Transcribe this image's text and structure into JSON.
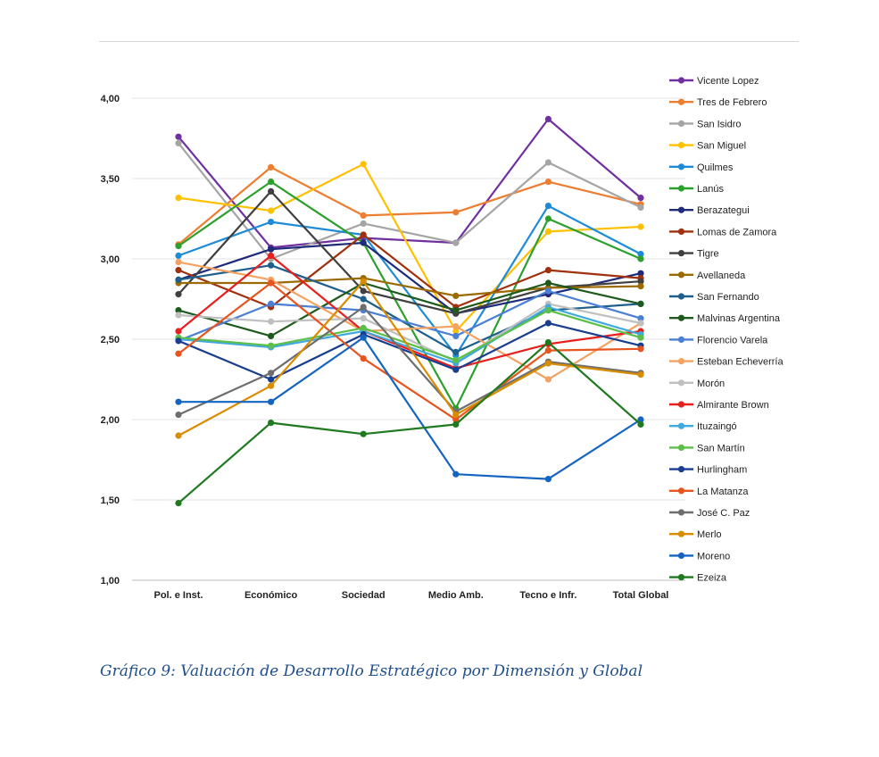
{
  "caption": "Gráfico 9: Valuación de Desarrollo Estratégico por Dimensión y Global",
  "chart_data": {
    "type": "line",
    "title": "",
    "xlabel": "",
    "ylabel": "",
    "ylim": [
      1.0,
      4.0
    ],
    "yticks": [
      "1,00",
      "1,50",
      "2,00",
      "2,50",
      "3,00",
      "3,50",
      "4,00"
    ],
    "ytick_values": [
      1.0,
      1.5,
      2.0,
      2.5,
      3.0,
      3.5,
      4.0
    ],
    "categories": [
      "Pol. e Inst.",
      "Económico",
      "Sociedad",
      "Medio Amb.",
      "Tecno e Infr.",
      "Total Global"
    ],
    "grid": true,
    "legend_position": "right",
    "series": [
      {
        "name": "Vicente Lopez",
        "color": "#7030a0",
        "values": [
          3.76,
          3.07,
          3.13,
          3.1,
          3.87,
          3.38
        ]
      },
      {
        "name": "Tres de Febrero",
        "color": "#ed7d31",
        "values": [
          3.09,
          3.57,
          3.27,
          3.29,
          3.48,
          3.34
        ]
      },
      {
        "name": "San Isidro",
        "color": "#a5a5a5",
        "values": [
          3.72,
          3.0,
          3.22,
          3.1,
          3.6,
          3.32
        ]
      },
      {
        "name": "San Miguel",
        "color": "#ffc000",
        "values": [
          3.38,
          3.3,
          3.59,
          2.55,
          3.17,
          3.2
        ]
      },
      {
        "name": "Quilmes",
        "color": "#1e8bd8",
        "values": [
          3.02,
          3.23,
          3.15,
          2.4,
          3.33,
          3.03
        ]
      },
      {
        "name": "Lanús",
        "color": "#2ca02c",
        "values": [
          3.08,
          3.48,
          3.1,
          2.07,
          3.25,
          3.0
        ]
      },
      {
        "name": "Berazategui",
        "color": "#1f2a7a",
        "values": [
          2.87,
          3.06,
          3.1,
          2.66,
          2.78,
          2.91
        ]
      },
      {
        "name": "Lomas de Zamora",
        "color": "#a0300e",
        "values": [
          2.93,
          2.7,
          3.15,
          2.7,
          2.93,
          2.88
        ]
      },
      {
        "name": "Tigre",
        "color": "#404040",
        "values": [
          2.78,
          3.42,
          2.8,
          2.66,
          2.82,
          2.86
        ]
      },
      {
        "name": "Avellaneda",
        "color": "#9b6a00",
        "values": [
          2.85,
          2.85,
          2.88,
          2.77,
          2.82,
          2.83
        ]
      },
      {
        "name": "San Fernando",
        "color": "#1f5f8b",
        "values": [
          2.87,
          2.96,
          2.75,
          2.42,
          2.68,
          2.72
        ]
      },
      {
        "name": "Malvinas Argentina",
        "color": "#1e5a1e",
        "values": [
          2.68,
          2.52,
          2.85,
          2.68,
          2.85,
          2.72
        ]
      },
      {
        "name": "Florencio Varela",
        "color": "#4a7fd4",
        "values": [
          2.49,
          2.72,
          2.68,
          2.52,
          2.8,
          2.63
        ]
      },
      {
        "name": "Esteban Echeverría",
        "color": "#f4a261",
        "values": [
          2.98,
          2.87,
          2.55,
          2.58,
          2.25,
          2.6
        ]
      },
      {
        "name": "Morón",
        "color": "#bfbfbf",
        "values": [
          2.65,
          2.61,
          2.63,
          2.36,
          2.72,
          2.6
        ]
      },
      {
        "name": "Almirante Brown",
        "color": "#e6201f",
        "values": [
          2.55,
          3.02,
          2.55,
          2.32,
          2.47,
          2.55
        ]
      },
      {
        "name": "Ituzaingó",
        "color": "#3fa9e0",
        "values": [
          2.5,
          2.45,
          2.55,
          2.35,
          2.7,
          2.53
        ]
      },
      {
        "name": "San Martín",
        "color": "#5cbf4a",
        "values": [
          2.51,
          2.46,
          2.57,
          2.37,
          2.68,
          2.51
        ]
      },
      {
        "name": "Hurlingham",
        "color": "#193d8f",
        "values": [
          2.49,
          2.25,
          2.53,
          2.31,
          2.6,
          2.46
        ]
      },
      {
        "name": "La Matanza",
        "color": "#e8541e",
        "values": [
          2.41,
          2.85,
          2.38,
          2.0,
          2.43,
          2.44
        ]
      },
      {
        "name": "José C. Paz",
        "color": "#6e6e6e",
        "values": [
          2.03,
          2.29,
          2.7,
          2.05,
          2.36,
          2.29
        ]
      },
      {
        "name": "Merlo",
        "color": "#d98c00",
        "values": [
          1.9,
          2.21,
          2.86,
          2.03,
          2.35,
          2.28
        ]
      },
      {
        "name": "Moreno",
        "color": "#1565c0",
        "values": [
          2.11,
          2.11,
          2.51,
          1.66,
          1.63,
          2.0
        ]
      },
      {
        "name": "Ezeiza",
        "color": "#1f7a1f",
        "values": [
          1.48,
          1.98,
          1.91,
          1.97,
          2.48,
          1.97
        ]
      }
    ]
  }
}
